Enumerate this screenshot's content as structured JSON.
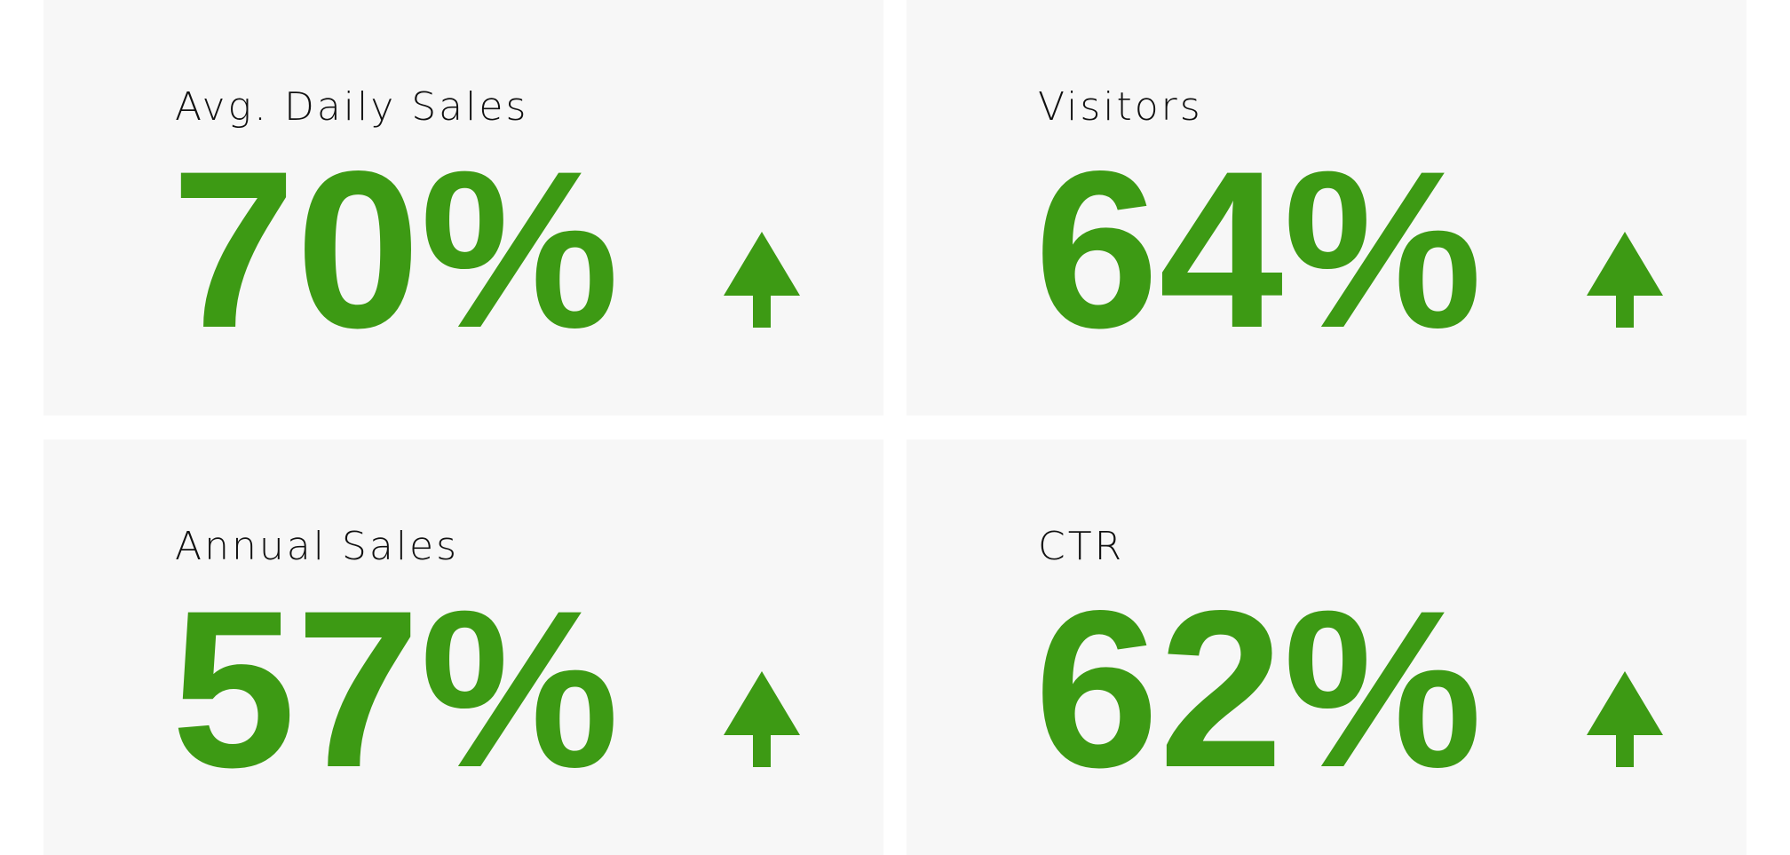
{
  "tiles": [
    {
      "label": "Avg. Daily Sales",
      "value": "70%"
    },
    {
      "label": "Visitors",
      "value": "64%"
    },
    {
      "label": "Annual Sales",
      "value": "57%"
    },
    {
      "label": "CTR",
      "value": "62%"
    }
  ]
}
